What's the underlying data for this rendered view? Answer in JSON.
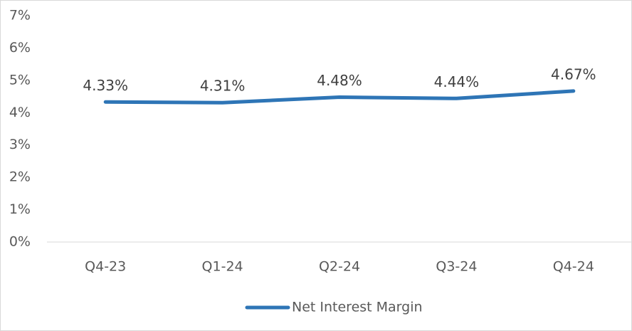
{
  "chart_data": {
    "type": "line",
    "categories": [
      "Q4-23",
      "Q1-24",
      "Q2-24",
      "Q3-24",
      "Q4-24"
    ],
    "series": [
      {
        "name": "Net Interest Margin",
        "color": "#2e75b6",
        "values": [
          4.33,
          4.31,
          4.48,
          4.44,
          4.67
        ],
        "value_labels": [
          "4.33%",
          "4.31%",
          "4.48%",
          "4.44%",
          "4.67%"
        ]
      }
    ],
    "ylim": [
      0,
      7
    ],
    "yticks": [
      {
        "value": 0,
        "label": "0%"
      },
      {
        "value": 1,
        "label": "1%"
      },
      {
        "value": 2,
        "label": "2%"
      },
      {
        "value": 3,
        "label": "3%"
      },
      {
        "value": 4,
        "label": "4%"
      },
      {
        "value": 5,
        "label": "5%"
      },
      {
        "value": 6,
        "label": "6%"
      },
      {
        "value": 7,
        "label": "7%"
      }
    ],
    "grid": false,
    "legend": "bottom"
  }
}
